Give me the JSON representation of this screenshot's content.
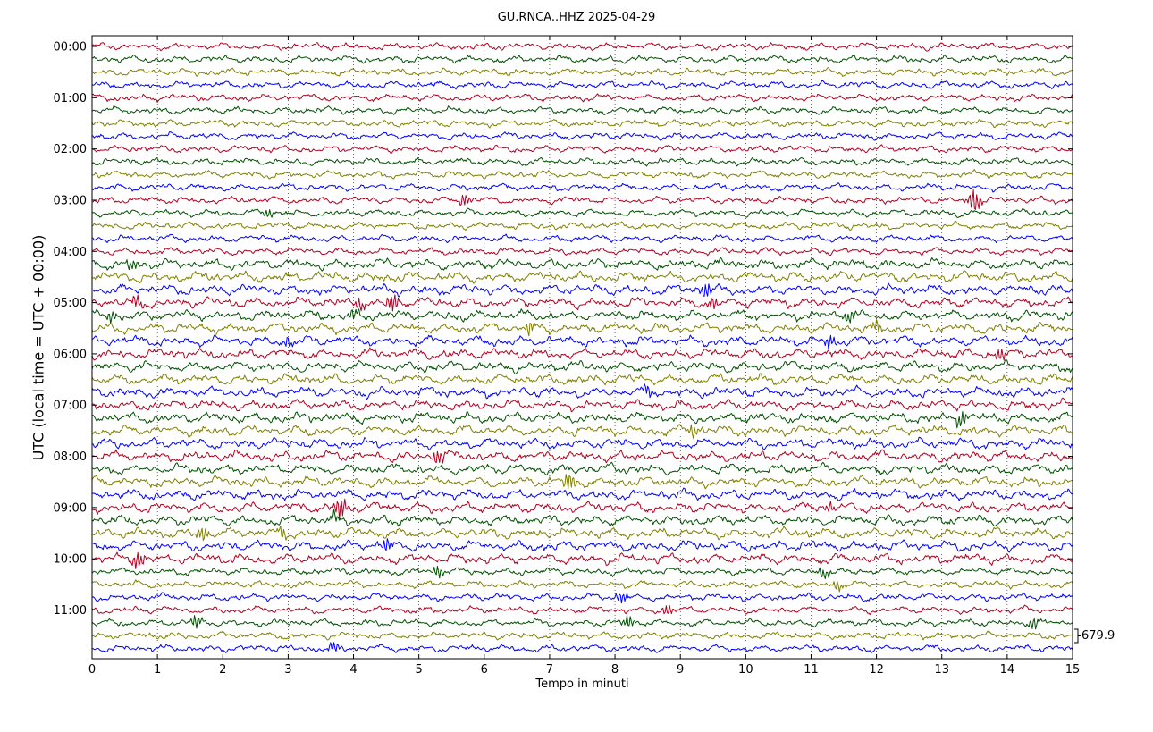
{
  "chart_data": {
    "type": "line",
    "title": "GU.RNCA..HHZ 2025-04-29",
    "xlabel": "Tempo in minuti",
    "ylabel": "UTC (local time = UTC + 00:00)",
    "xlim": [
      0,
      15
    ],
    "x_ticks": [
      "0",
      "1",
      "2",
      "3",
      "4",
      "5",
      "6",
      "7",
      "8",
      "9",
      "10",
      "11",
      "12",
      "13",
      "14",
      "15"
    ],
    "y_tick_labels": [
      "00:00",
      "01:00",
      "02:00",
      "03:00",
      "04:00",
      "05:00",
      "06:00",
      "07:00",
      "08:00",
      "09:00",
      "10:00",
      "11:00"
    ],
    "trace_count": 48,
    "minutes_per_trace": 15,
    "colors": [
      "#b00020",
      "#005000",
      "#808000",
      "#0000ff"
    ],
    "scale_label": "679.9",
    "grid": "vertical dotted lines at each minute",
    "events": [
      {
        "row": 12,
        "minute": 13.5,
        "amp": 3.2
      },
      {
        "row": 12,
        "minute": 5.7,
        "amp": 1.4
      },
      {
        "row": 13,
        "minute": 2.7,
        "amp": 1.3
      },
      {
        "row": 17,
        "minute": 0.6,
        "amp": 1.5
      },
      {
        "row": 19,
        "minute": 9.4,
        "amp": 2.0
      },
      {
        "row": 20,
        "minute": 0.7,
        "amp": 1.8
      },
      {
        "row": 20,
        "minute": 4.1,
        "amp": 1.8
      },
      {
        "row": 20,
        "minute": 4.6,
        "amp": 2.2
      },
      {
        "row": 20,
        "minute": 9.5,
        "amp": 1.5
      },
      {
        "row": 21,
        "minute": 0.3,
        "amp": 1.4
      },
      {
        "row": 21,
        "minute": 4.0,
        "amp": 1.6
      },
      {
        "row": 21,
        "minute": 11.6,
        "amp": 1.5
      },
      {
        "row": 22,
        "minute": 6.7,
        "amp": 1.8
      },
      {
        "row": 22,
        "minute": 12.0,
        "amp": 1.5
      },
      {
        "row": 23,
        "minute": 3.0,
        "amp": 1.3
      },
      {
        "row": 23,
        "minute": 11.3,
        "amp": 1.6
      },
      {
        "row": 24,
        "minute": 13.9,
        "amp": 1.6
      },
      {
        "row": 27,
        "minute": 8.5,
        "amp": 1.4
      },
      {
        "row": 29,
        "minute": 13.3,
        "amp": 1.9
      },
      {
        "row": 30,
        "minute": 9.2,
        "amp": 1.5
      },
      {
        "row": 32,
        "minute": 5.3,
        "amp": 2.2
      },
      {
        "row": 34,
        "minute": 7.3,
        "amp": 2.5
      },
      {
        "row": 36,
        "minute": 3.8,
        "amp": 3.0
      },
      {
        "row": 36,
        "minute": 11.3,
        "amp": 1.4
      },
      {
        "row": 37,
        "minute": 3.7,
        "amp": 1.6
      },
      {
        "row": 38,
        "minute": 1.7,
        "amp": 1.8
      },
      {
        "row": 38,
        "minute": 2.9,
        "amp": 1.5
      },
      {
        "row": 39,
        "minute": 4.5,
        "amp": 1.7
      },
      {
        "row": 40,
        "minute": 0.7,
        "amp": 2.5
      },
      {
        "row": 41,
        "minute": 5.3,
        "amp": 1.5
      },
      {
        "row": 41,
        "minute": 11.2,
        "amp": 1.5
      },
      {
        "row": 42,
        "minute": 11.4,
        "amp": 1.4
      },
      {
        "row": 43,
        "minute": 8.1,
        "amp": 1.5
      },
      {
        "row": 44,
        "minute": 8.8,
        "amp": 1.6
      },
      {
        "row": 45,
        "minute": 1.6,
        "amp": 1.5
      },
      {
        "row": 45,
        "minute": 8.2,
        "amp": 1.7
      },
      {
        "row": 45,
        "minute": 14.4,
        "amp": 1.6
      },
      {
        "row": 47,
        "minute": 3.7,
        "amp": 1.5
      }
    ]
  }
}
